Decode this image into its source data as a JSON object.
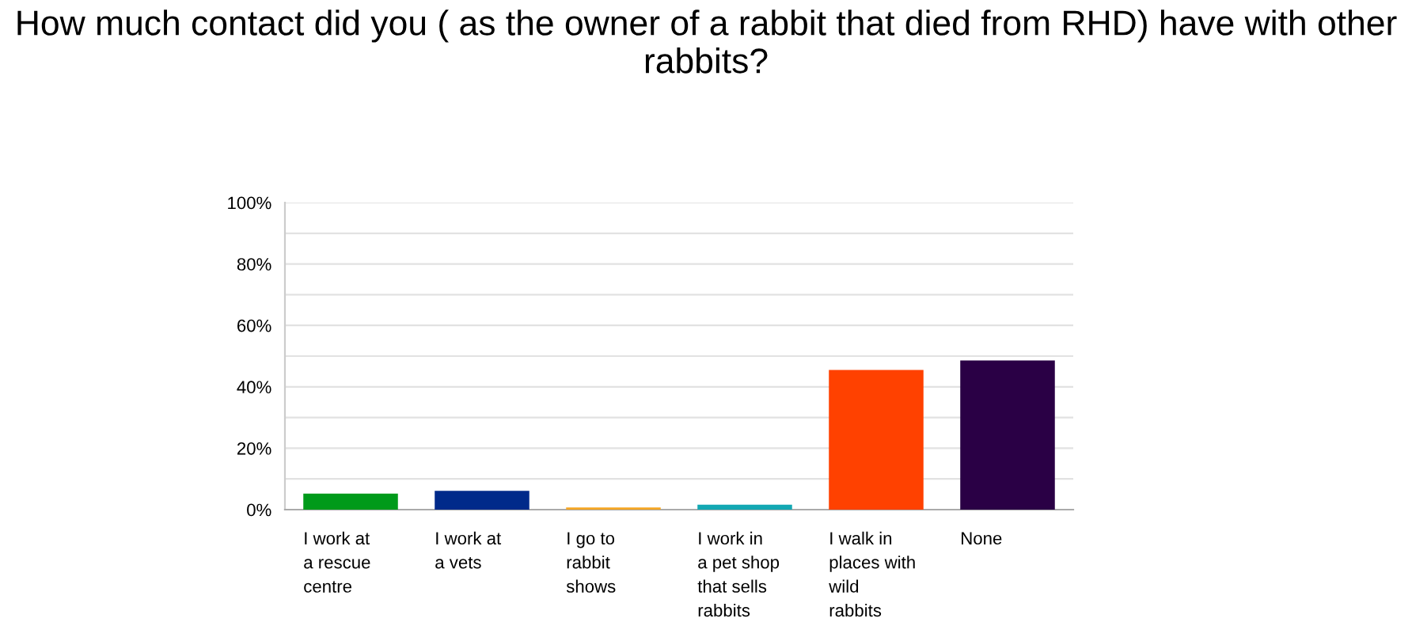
{
  "chart_data": {
    "type": "bar",
    "title": "How much contact did you ( as the owner of a rabbit that died from RHD) have with other rabbits?",
    "categories": [
      "I work at\na rescue\ncentre",
      "I work at\na vets",
      "I go to\nrabbit\nshows",
      "I work in\na pet shop\nthat sells\nrabbits",
      "I walk in\nplaces with\nwild\nrabbits",
      "None"
    ],
    "values": [
      5.2,
      6.1,
      0.7,
      1.6,
      45.5,
      48.6
    ],
    "colors": [
      "#009a1a",
      "#002a8a",
      "#f5a623",
      "#13a8b3",
      "#ff4100",
      "#2a0045"
    ],
    "ylim": [
      0,
      100
    ],
    "yticks": [
      {
        "value": 0,
        "label": "0%"
      },
      {
        "value": 10,
        "label": null
      },
      {
        "value": 20,
        "label": "20%"
      },
      {
        "value": 30,
        "label": null
      },
      {
        "value": 40,
        "label": "40%"
      },
      {
        "value": 50,
        "label": null
      },
      {
        "value": 60,
        "label": "60%"
      },
      {
        "value": 70,
        "label": null
      },
      {
        "value": 80,
        "label": "80%"
      },
      {
        "value": 90,
        "label": null
      },
      {
        "value": 100,
        "label": "100%"
      }
    ],
    "grid": "y"
  }
}
